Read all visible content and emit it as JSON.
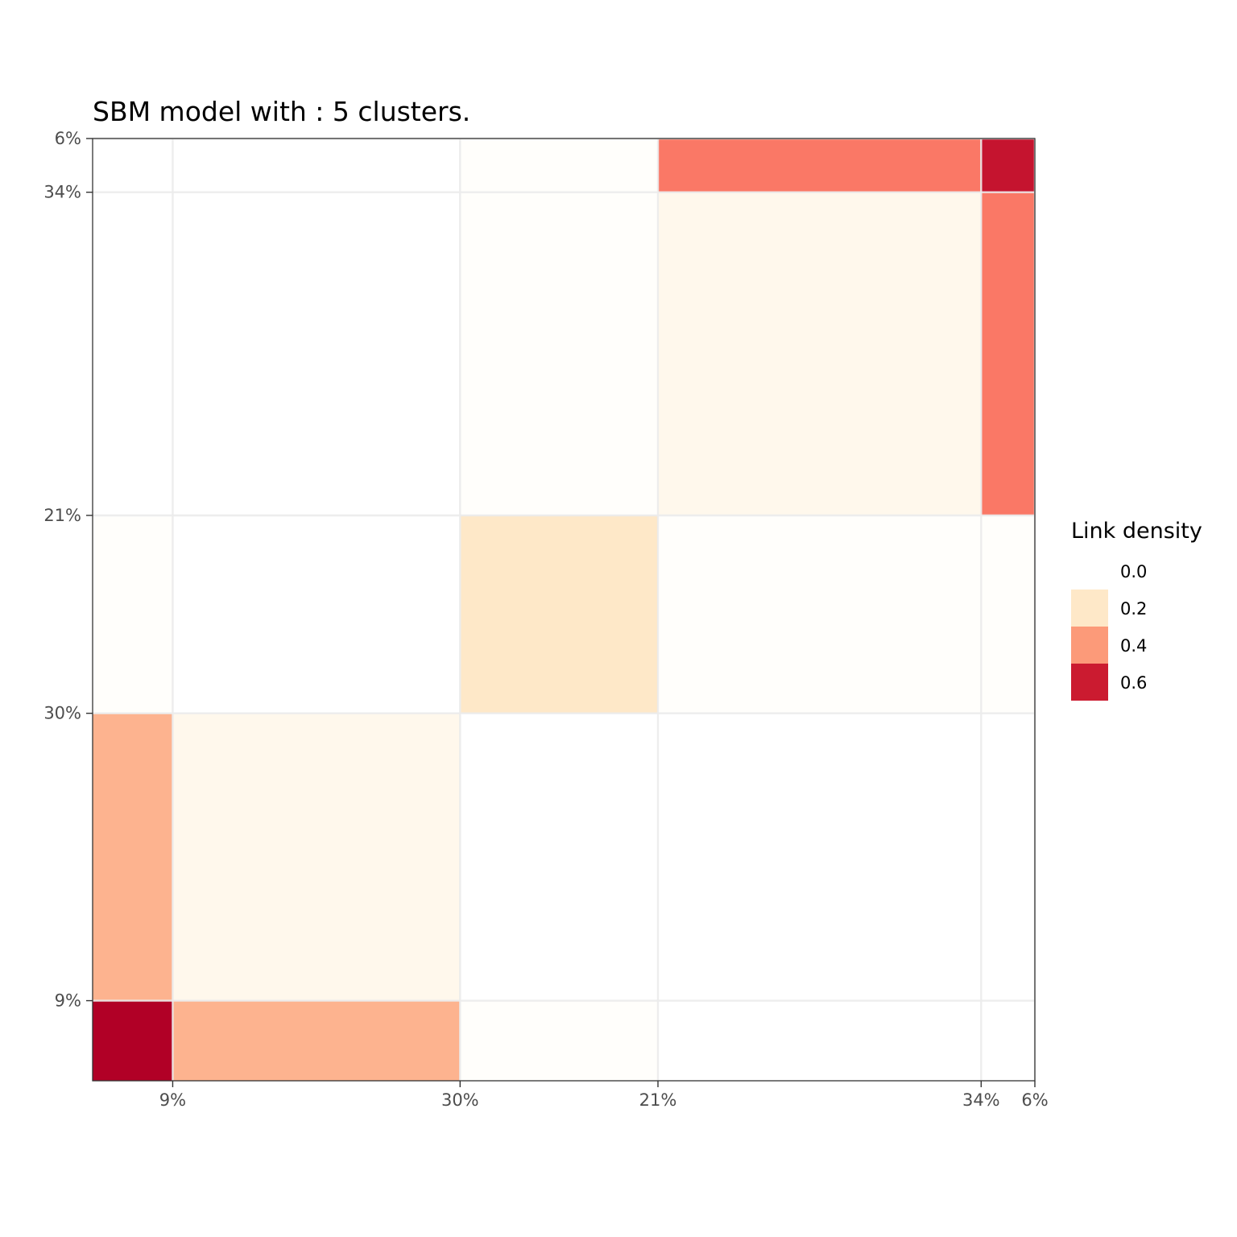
{
  "chart_data": {
    "type": "heatmap",
    "title": "SBM model with : 5 clusters.",
    "xlabel": "",
    "ylabel": "",
    "clusters": [
      {
        "id": 1,
        "proportion": 0.085,
        "label": "9%"
      },
      {
        "id": 2,
        "proportion": 0.305,
        "label": "30%"
      },
      {
        "id": 3,
        "proportion": 0.21,
        "label": "21%"
      },
      {
        "id": 4,
        "proportion": 0.343,
        "label": "34%"
      },
      {
        "id": 5,
        "proportion": 0.057,
        "label": "6%"
      }
    ],
    "x_order": [
      1,
      2,
      3,
      4,
      5
    ],
    "y_order_bottom_to_top": [
      1,
      2,
      3,
      4,
      5
    ],
    "density_matrix": [
      [
        0.68,
        0.36,
        0.01,
        0.0,
        0.0
      ],
      [
        0.36,
        0.05,
        0.0,
        0.0,
        0.0
      ],
      [
        0.01,
        0.0,
        0.15,
        0.01,
        0.01
      ],
      [
        0.0,
        0.0,
        0.01,
        0.05,
        0.44
      ],
      [
        0.0,
        0.0,
        0.01,
        0.44,
        0.64
      ]
    ],
    "legend": {
      "title": "Link density",
      "position": "right",
      "entries": [
        {
          "label": "0.0",
          "color": "#ffffff"
        },
        {
          "label": "0.2",
          "color": "#fee8c8"
        },
        {
          "label": "0.4",
          "color": "#fc9a79"
        },
        {
          "label": "0.6",
          "color": "#cb1b30"
        }
      ]
    },
    "color_scale": {
      "stops": [
        {
          "value": 0.0,
          "color": "#ffffff"
        },
        {
          "value": 0.05,
          "color": "#fff8ec"
        },
        {
          "value": 0.15,
          "color": "#fee8c8"
        },
        {
          "value": 0.36,
          "color": "#fdb38f"
        },
        {
          "value": 0.44,
          "color": "#fa7866"
        },
        {
          "value": 0.64,
          "color": "#c5142f"
        },
        {
          "value": 0.68,
          "color": "#b10026"
        }
      ]
    },
    "grid": true
  }
}
